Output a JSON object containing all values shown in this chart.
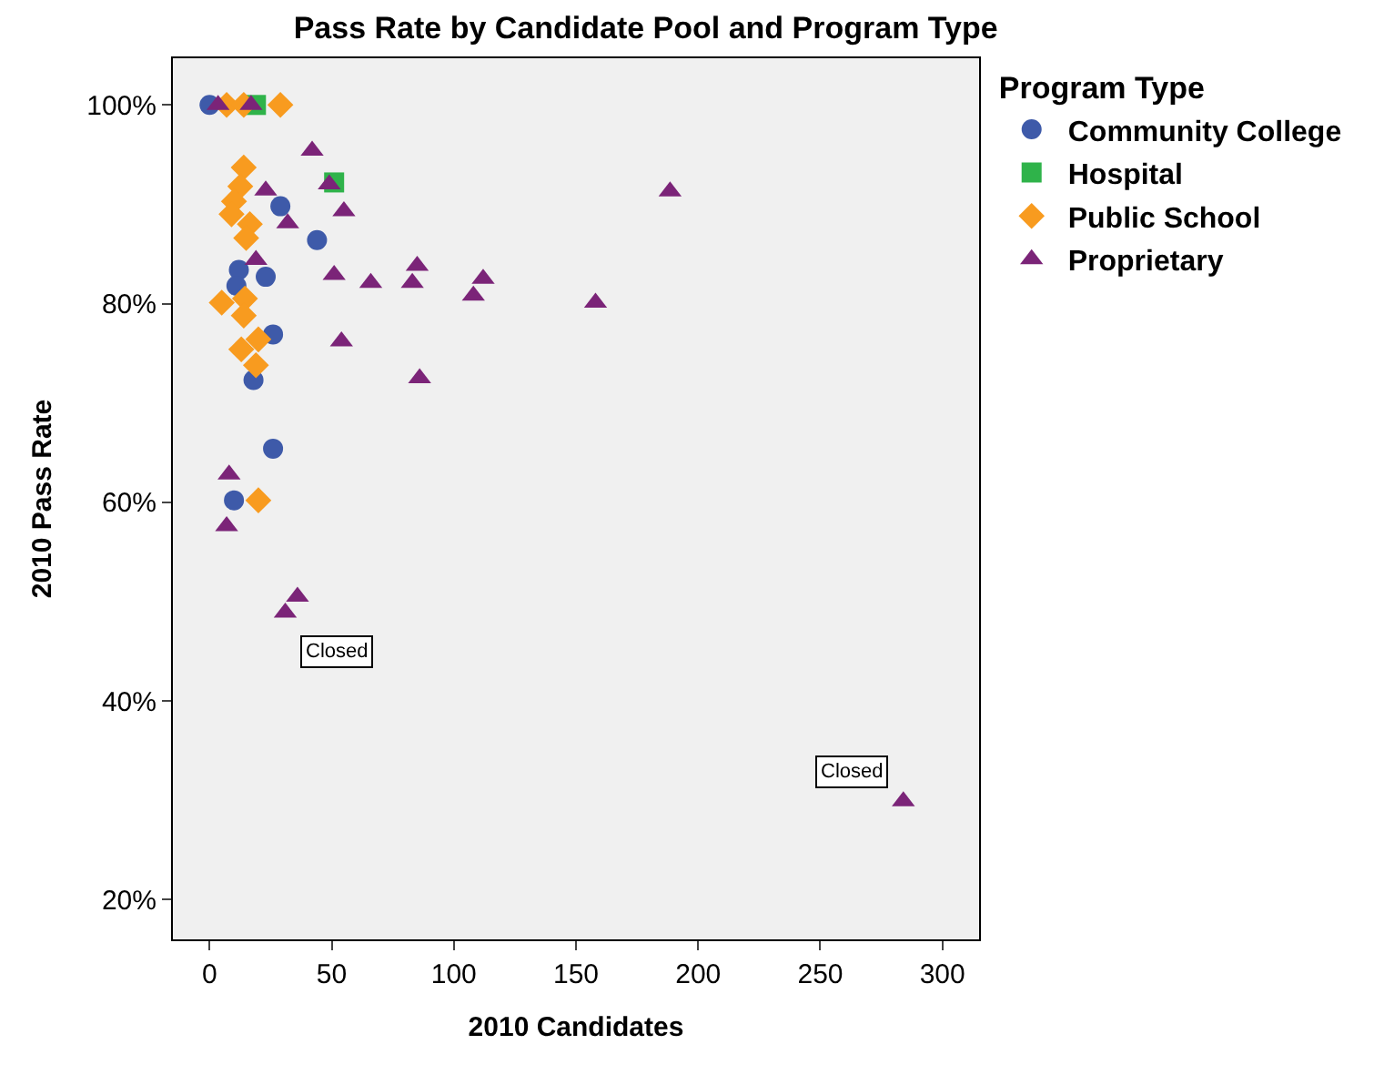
{
  "chart_data": {
    "type": "scatter",
    "title": "Pass Rate by Candidate Pool and Program Type",
    "xlabel": "2010 Candidates",
    "ylabel": "2010 Pass Rate",
    "legend_title": "Program Type",
    "xlim": [
      -15,
      315
    ],
    "xticks": [
      0,
      50,
      100,
      150,
      200,
      250,
      300
    ],
    "ylim": [
      16,
      104.7
    ],
    "yticks": [
      {
        "value": 20,
        "label": "20%"
      },
      {
        "value": 40,
        "label": "40%"
      },
      {
        "value": 60,
        "label": "60%"
      },
      {
        "value": 80,
        "label": "80%"
      },
      {
        "value": 100,
        "label": "100%"
      }
    ],
    "grid": false,
    "legend": "right",
    "series": [
      {
        "name": "Community College",
        "color": "#3e5aa9",
        "marker": "circle",
        "x": [
          0,
          17,
          29,
          44,
          12,
          23,
          11,
          26,
          18,
          26,
          10
        ],
        "values": [
          100,
          null,
          89.8,
          86.4,
          83.4,
          82.7,
          81.8,
          76.9,
          72.3,
          65.4,
          60.2
        ]
      },
      {
        "name": "Hospital",
        "color": "#2fb34a",
        "marker": "square",
        "x": [
          51,
          19
        ],
        "values": [
          92.2,
          100
        ]
      },
      {
        "name": "Public School",
        "color": "#f89b1f",
        "marker": "diamond",
        "x": [
          7,
          14,
          29,
          14,
          12.6,
          10,
          9,
          16.5,
          15,
          5,
          14.5,
          14,
          13,
          20,
          19,
          20
        ],
        "values": [
          100,
          100,
          100,
          93.7,
          91.8,
          90.3,
          89,
          88,
          86.6,
          80.1,
          80.5,
          78.8,
          75.4,
          76.4,
          73.8,
          60.2
        ]
      },
      {
        "name": "Proprietary",
        "color": "#7b2478",
        "marker": "triangle",
        "x": [
          3.5,
          17,
          42,
          49,
          23,
          55,
          32,
          19,
          51,
          66,
          85,
          83,
          54,
          188.5,
          108,
          112,
          158,
          86,
          8,
          7,
          36,
          31,
          284
        ],
        "values": [
          100,
          100,
          95.4,
          92,
          91.4,
          89.3,
          88.1,
          84.4,
          82.9,
          82.1,
          83.8,
          82.1,
          76.2,
          91.3,
          80.8,
          82.5,
          80.1,
          72.5,
          62.8,
          57.6,
          50.5,
          48.9,
          29.9
        ]
      }
    ],
    "annotations": [
      {
        "text": "Closed",
        "x": 31,
        "y": 48.9
      },
      {
        "text": "Closed",
        "x": 284,
        "y": 29.9
      }
    ]
  }
}
